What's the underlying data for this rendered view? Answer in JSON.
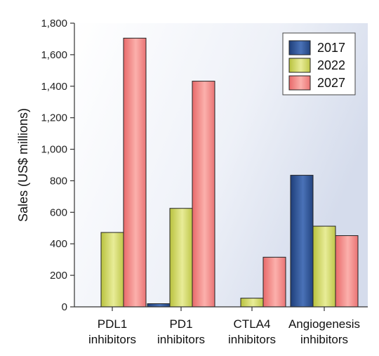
{
  "chart_data": {
    "type": "bar",
    "title": "",
    "xlabel": "",
    "ylabel": "Sales (US$ millions)",
    "ylim": [
      0,
      1800
    ],
    "yticks": [
      0,
      200,
      400,
      600,
      800,
      1000,
      1200,
      1400,
      1600,
      1800
    ],
    "ytick_labels": [
      "0",
      "200",
      "400",
      "600",
      "800",
      "1,000",
      "1,200",
      "1,400",
      "1,600",
      "1,800"
    ],
    "categories": [
      [
        "PDL1",
        "inhibitors"
      ],
      [
        "PD1",
        "inhibitors"
      ],
      [
        "CTLA4",
        "inhibitors"
      ],
      [
        "Angiogenesis",
        "inhibitors"
      ]
    ],
    "series": [
      {
        "name": "2017",
        "values": [
          0,
          20,
          0,
          835
        ],
        "color": "#2f5597"
      },
      {
        "name": "2022",
        "values": [
          472,
          625,
          55,
          512
        ],
        "color": "#d4d96a"
      },
      {
        "name": "2027",
        "values": [
          1705,
          1432,
          315,
          452
        ],
        "color": "#f08080"
      }
    ],
    "grid": false,
    "legend": "top-right",
    "background": "gradient white to light blue"
  }
}
